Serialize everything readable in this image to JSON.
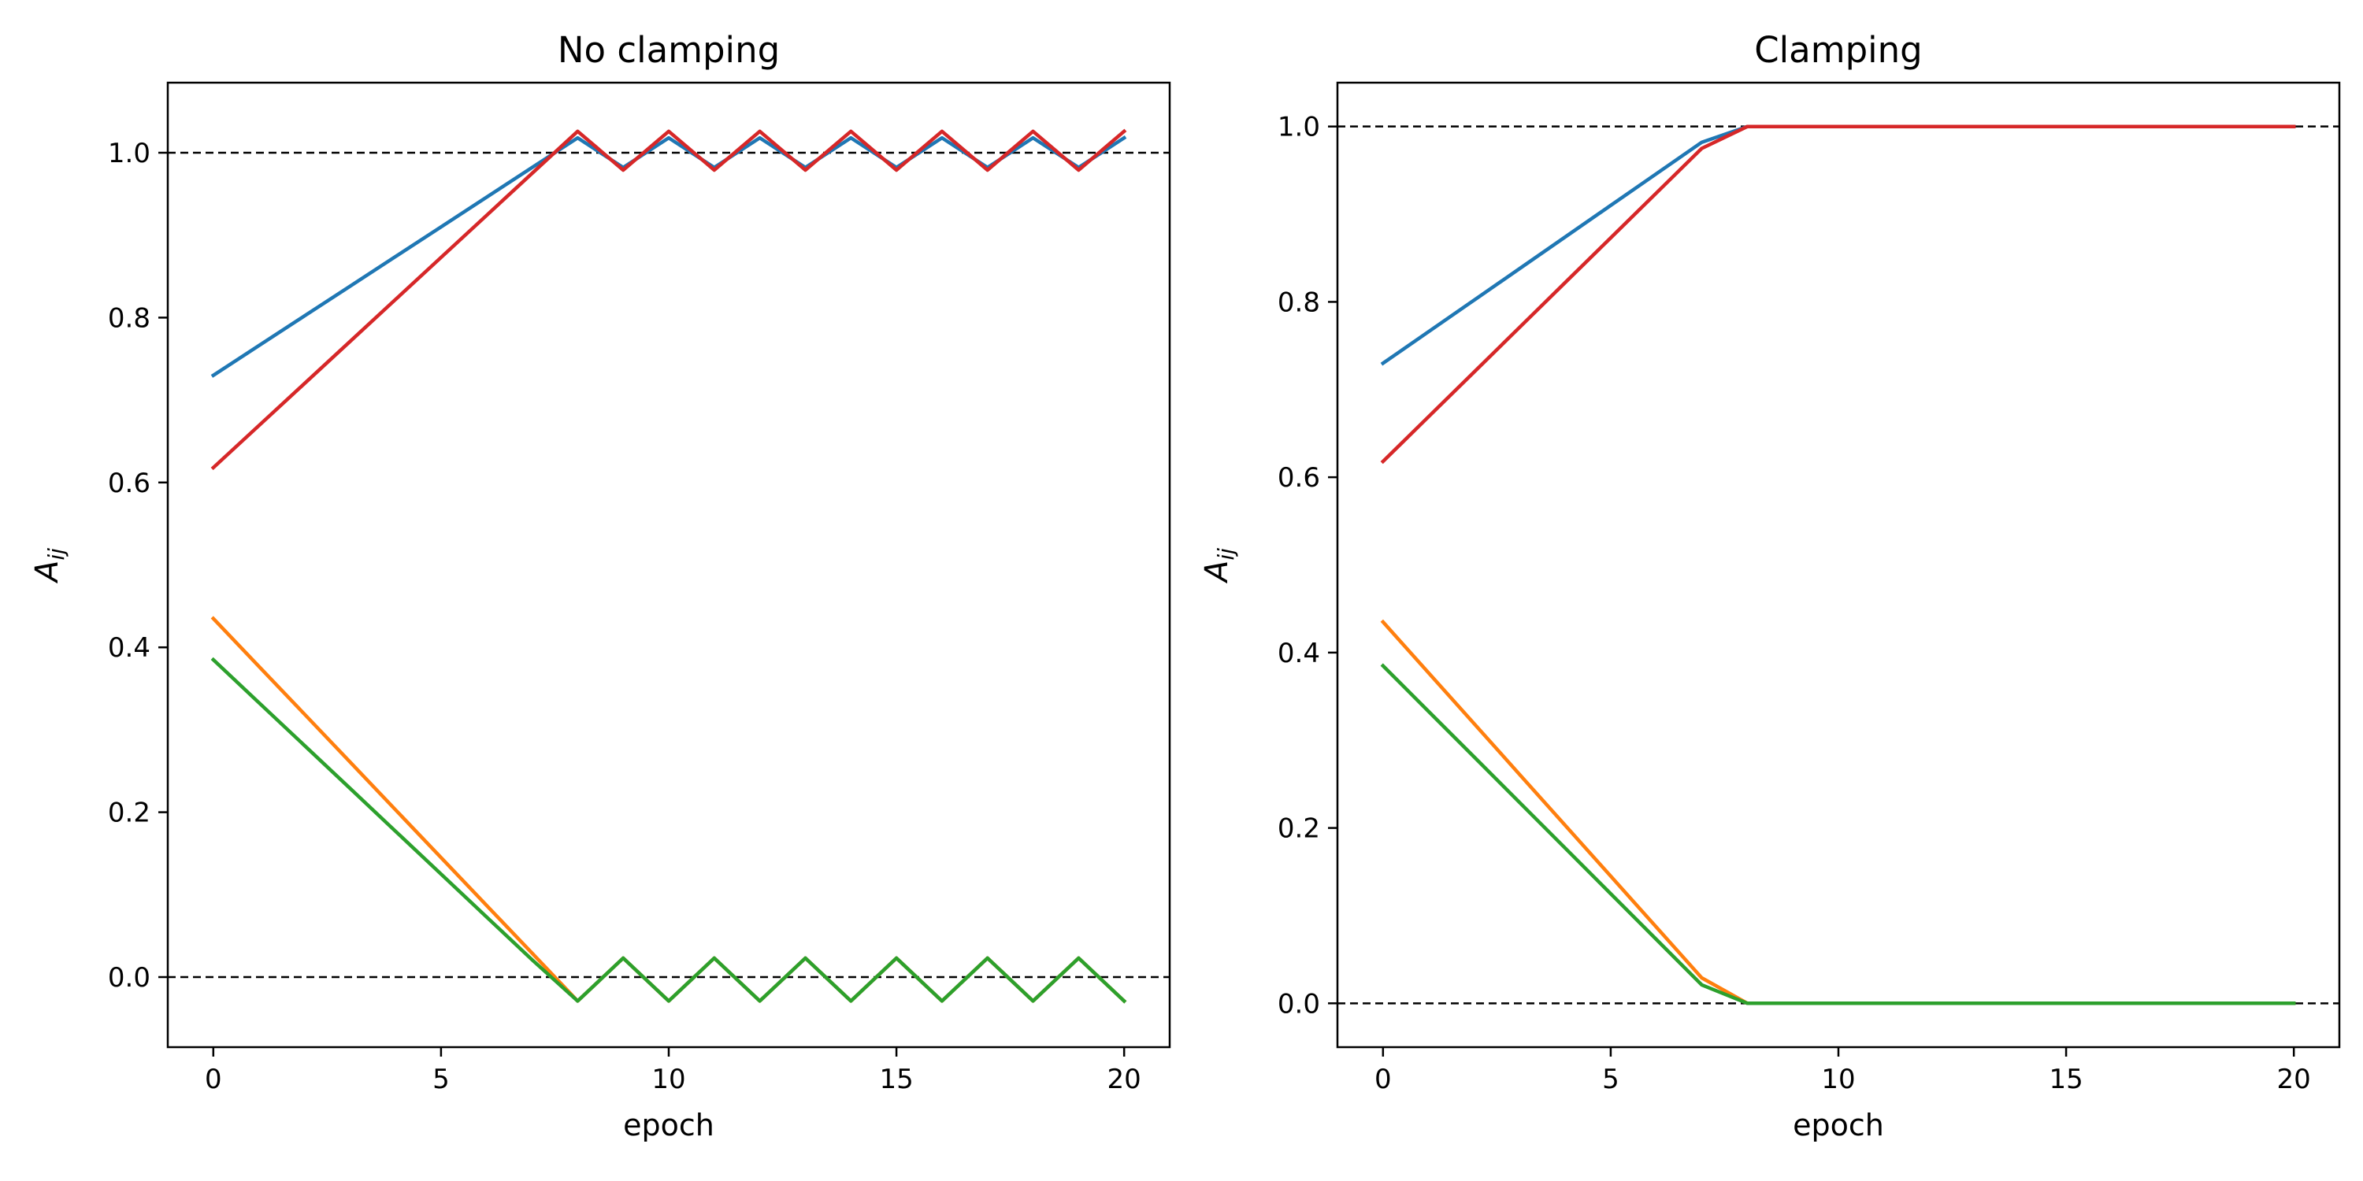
{
  "chart_data": [
    {
      "type": "line",
      "title": "No clamping",
      "xlabel": "epoch",
      "ylabel": {
        "base": "A",
        "sub": "ij"
      },
      "xlim": [
        -1,
        21
      ],
      "ylim": [
        -0.085,
        1.085
      ],
      "xticks": [
        0,
        5,
        10,
        15,
        20
      ],
      "yticks": [
        0.0,
        0.2,
        0.4,
        0.6,
        0.8,
        1.0
      ],
      "ytick_labels": [
        "0.0",
        "0.2",
        "0.4",
        "0.6",
        "0.8",
        "1.0"
      ],
      "xtick_labels": [
        "0",
        "5",
        "10",
        "15",
        "20"
      ],
      "reference_lines": [
        0.0,
        1.0
      ],
      "grid": false,
      "x": [
        0,
        1,
        2,
        3,
        4,
        5,
        6,
        7,
        8,
        9,
        10,
        11,
        12,
        13,
        14,
        15,
        16,
        17,
        18,
        19,
        20
      ],
      "series": [
        {
          "color": "#1f77b4",
          "values": [
            0.73,
            0.766,
            0.802,
            0.838,
            0.874,
            0.91,
            0.946,
            0.982,
            1.018,
            0.982,
            1.018,
            0.982,
            1.018,
            0.982,
            1.018,
            0.982,
            1.018,
            0.982,
            1.018,
            0.982,
            1.018
          ]
        },
        {
          "color": "#ff7f0e",
          "values": [
            0.435,
            0.377,
            0.319,
            0.261,
            0.203,
            0.145,
            0.087,
            0.029,
            -0.029,
            0.023,
            -0.029,
            0.023,
            -0.029,
            0.023,
            -0.029,
            0.023,
            -0.029,
            0.023,
            -0.029,
            0.023,
            -0.029
          ]
        },
        {
          "color": "#2ca02c",
          "values": [
            0.385,
            0.333,
            0.281,
            0.229,
            0.177,
            0.125,
            0.073,
            0.021,
            -0.029,
            0.023,
            -0.029,
            0.023,
            -0.029,
            0.023,
            -0.029,
            0.023,
            -0.029,
            0.023,
            -0.029,
            0.023,
            -0.029
          ]
        },
        {
          "color": "#d62728",
          "values": [
            0.618,
            0.669,
            0.72,
            0.771,
            0.822,
            0.873,
            0.924,
            0.975,
            1.026,
            0.979,
            1.026,
            0.979,
            1.026,
            0.979,
            1.026,
            0.979,
            1.026,
            0.979,
            1.026,
            0.979,
            1.026
          ]
        }
      ]
    },
    {
      "type": "line",
      "title": "Clamping",
      "xlabel": "epoch",
      "ylabel": {
        "base": "A",
        "sub": "ij"
      },
      "xlim": [
        -1,
        21
      ],
      "ylim": [
        -0.05,
        1.05
      ],
      "xticks": [
        0,
        5,
        10,
        15,
        20
      ],
      "yticks": [
        0.0,
        0.2,
        0.4,
        0.6,
        0.8,
        1.0
      ],
      "ytick_labels": [
        "0.0",
        "0.2",
        "0.4",
        "0.6",
        "0.8",
        "1.0"
      ],
      "xtick_labels": [
        "0",
        "5",
        "10",
        "15",
        "20"
      ],
      "reference_lines": [
        0.0,
        1.0
      ],
      "grid": false,
      "x": [
        0,
        1,
        2,
        3,
        4,
        5,
        6,
        7,
        8,
        9,
        10,
        11,
        12,
        13,
        14,
        15,
        16,
        17,
        18,
        19,
        20
      ],
      "series": [
        {
          "color": "#1f77b4",
          "values": [
            0.73,
            0.766,
            0.802,
            0.838,
            0.874,
            0.91,
            0.946,
            0.982,
            1.0,
            1.0,
            1.0,
            1.0,
            1.0,
            1.0,
            1.0,
            1.0,
            1.0,
            1.0,
            1.0,
            1.0,
            1.0
          ]
        },
        {
          "color": "#ff7f0e",
          "values": [
            0.435,
            0.377,
            0.319,
            0.261,
            0.203,
            0.145,
            0.087,
            0.029,
            0.0,
            0.0,
            0.0,
            0.0,
            0.0,
            0.0,
            0.0,
            0.0,
            0.0,
            0.0,
            0.0,
            0.0,
            0.0
          ]
        },
        {
          "color": "#2ca02c",
          "values": [
            0.385,
            0.333,
            0.281,
            0.229,
            0.177,
            0.125,
            0.073,
            0.021,
            0.0,
            0.0,
            0.0,
            0.0,
            0.0,
            0.0,
            0.0,
            0.0,
            0.0,
            0.0,
            0.0,
            0.0,
            0.0
          ]
        },
        {
          "color": "#d62728",
          "values": [
            0.618,
            0.669,
            0.72,
            0.771,
            0.822,
            0.873,
            0.924,
            0.975,
            1.0,
            1.0,
            1.0,
            1.0,
            1.0,
            1.0,
            1.0,
            1.0,
            1.0,
            1.0,
            1.0,
            1.0,
            1.0
          ]
        }
      ]
    }
  ]
}
